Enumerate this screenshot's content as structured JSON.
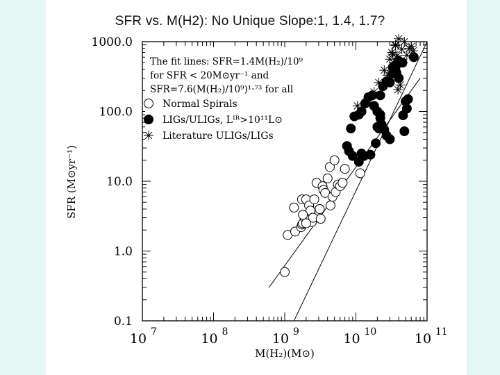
{
  "slide": {
    "title": "SFR vs. M(H2): No Unique Slope:1, 1.4, 1.7?"
  },
  "chart_data": {
    "type": "scatter",
    "title": "",
    "xlabel": "M(H₂)(M⊙)",
    "ylabel": "SFR (M⊙yr⁻¹)",
    "xscale": "log",
    "yscale": "log",
    "xlim": [
      10000000,
      100000000000
    ],
    "ylim": [
      0.1,
      1000.0
    ],
    "xticks": [
      {
        "value": 10000000,
        "base": "10",
        "exp": "7"
      },
      {
        "value": 100000000,
        "base": "10",
        "exp": "8"
      },
      {
        "value": 1000000000,
        "base": "10",
        "exp": "9"
      },
      {
        "value": 10000000000,
        "base": "10",
        "exp": "10"
      },
      {
        "value": 100000000000,
        "base": "10",
        "exp": "11"
      }
    ],
    "yticks": [
      {
        "value": 0.1,
        "label": "0.1"
      },
      {
        "value": 1.0,
        "label": "1.0"
      },
      {
        "value": 10.0,
        "label": "10.0"
      },
      {
        "value": 100.0,
        "label": "100.0"
      },
      {
        "value": 1000.0,
        "label": "1000.0"
      }
    ],
    "annotation": [
      "The fit lines: SFR=1.4M(H₂)/10⁹",
      "for SFR < 20M⊙yr⁻¹ and",
      "SFR=7.6(M(H₂)/10⁹)¹·⁷³ for all"
    ],
    "legend": {
      "placement": "top-left",
      "entries": [
        {
          "marker": "open-circle",
          "label": "Normal Spirals"
        },
        {
          "marker": "filled-circle",
          "label": "LIGs/ULIGs, Lᴵᴿ>10¹¹L⊙"
        },
        {
          "marker": "asterisk",
          "label": "Literature ULIGs/LIGs"
        }
      ]
    },
    "fit_lines": [
      {
        "points": [
          [
            600000000,
            0.3
          ],
          [
            80000000000,
            300
          ]
        ]
      },
      {
        "points": [
          [
            1350000000,
            0.1
          ],
          [
            100000000000,
            1000
          ]
        ]
      }
    ],
    "series": [
      {
        "marker": "open-circle",
        "points": [
          [
            1000000000,
            0.5
          ],
          [
            1100000000,
            1.7
          ],
          [
            1400000000,
            1.9
          ],
          [
            1350000000,
            4.2
          ],
          [
            1700000000,
            2.2
          ],
          [
            1750000000,
            2.4
          ],
          [
            1800000000,
            2.5
          ],
          [
            1900000000,
            3.0
          ],
          [
            1750000000,
            5.5
          ],
          [
            2000000000,
            5.5
          ],
          [
            2200000000,
            4.5
          ],
          [
            2300000000,
            3.8
          ],
          [
            2400000000,
            2.6
          ],
          [
            2500000000,
            3.0
          ],
          [
            2600000000,
            5.5
          ],
          [
            2800000000,
            9.5
          ],
          [
            3100000000,
            4.0
          ],
          [
            3200000000,
            2.9
          ],
          [
            3400000000,
            8.5
          ],
          [
            3500000000,
            7.5
          ],
          [
            3700000000,
            6.8
          ],
          [
            4000000000,
            11.0
          ],
          [
            4300000000,
            16.0
          ],
          [
            4400000000,
            4.5
          ],
          [
            4700000000,
            6.0
          ],
          [
            5200000000,
            7.0
          ],
          [
            5600000000,
            9.0
          ],
          [
            6000000000,
            8.5
          ],
          [
            6500000000,
            9.5
          ],
          [
            5000000000,
            20.0
          ],
          [
            7000000000,
            15.0
          ],
          [
            11500000000,
            13.0
          ],
          [
            2000000000,
            2.5
          ],
          [
            1800000000,
            3.3
          ]
        ]
      },
      {
        "marker": "filled-circle",
        "points": [
          [
            7500000000,
            32
          ],
          [
            8000000000,
            27
          ],
          [
            9000000000,
            23
          ],
          [
            11000000000,
            19
          ],
          [
            12000000000,
            25
          ],
          [
            13000000000,
            23
          ],
          [
            8500000000,
            57
          ],
          [
            9500000000,
            85
          ],
          [
            11000000000,
            90
          ],
          [
            12000000000,
            100
          ],
          [
            13500000000,
            130
          ],
          [
            15000000000,
            160
          ],
          [
            17000000000,
            170
          ],
          [
            18000000000,
            120
          ],
          [
            20000000000,
            100
          ],
          [
            22000000000,
            80
          ],
          [
            20000000000,
            60
          ],
          [
            21000000000,
            57
          ],
          [
            23000000000,
            65
          ],
          [
            25000000000,
            55
          ],
          [
            27000000000,
            45
          ],
          [
            30000000000,
            40
          ],
          [
            16000000000,
            24
          ],
          [
            19000000000,
            35
          ],
          [
            22000000000,
            170
          ],
          [
            24000000000,
            230
          ],
          [
            27000000000,
            270
          ],
          [
            30000000000,
            260
          ],
          [
            33000000000,
            350
          ],
          [
            36000000000,
            430
          ],
          [
            40000000000,
            530
          ],
          [
            45000000000,
            500
          ],
          [
            50000000000,
            140
          ],
          [
            52000000000,
            110
          ],
          [
            48000000000,
            52
          ],
          [
            40000000000,
            300
          ],
          [
            22000000000,
            90
          ],
          [
            37000000000,
            360
          ],
          [
            34000000000,
            440
          ],
          [
            33000000000,
            430
          ],
          [
            38000000000,
            480
          ],
          [
            46000000000,
            88
          ],
          [
            65000000000,
            600
          ],
          [
            54000000000,
            150
          ]
        ]
      },
      {
        "marker": "asterisk",
        "points": [
          [
            10500000000,
            120
          ],
          [
            14500000000,
            150
          ],
          [
            18000000000,
            190
          ],
          [
            21000000000,
            260
          ],
          [
            25000000000,
            390
          ],
          [
            28000000000,
            330
          ],
          [
            30000000000,
            560
          ],
          [
            32000000000,
            700
          ],
          [
            34000000000,
            500
          ],
          [
            36000000000,
            900
          ],
          [
            38000000000,
            630
          ],
          [
            40000000000,
            1100
          ],
          [
            44000000000,
            780
          ],
          [
            48000000000,
            1000
          ],
          [
            52000000000,
            640
          ],
          [
            56000000000,
            800
          ],
          [
            60000000000,
            850
          ],
          [
            64000000000,
            740
          ],
          [
            42000000000,
            240
          ],
          [
            39000000000,
            205
          ],
          [
            33000000000,
            660
          ],
          [
            36000000000,
            880
          ],
          [
            37000000000,
            440
          ],
          [
            46000000000,
            500
          ]
        ]
      }
    ]
  }
}
